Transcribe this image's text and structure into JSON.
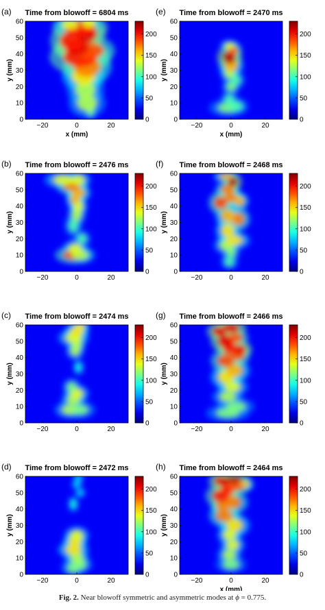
{
  "panels": [
    {
      "label": "(a)",
      "title": "Time from blowoff = 6804 ms",
      "col": 0,
      "row": 0,
      "show_xlabel": true,
      "blobs": [
        [
          8,
          5,
          2,
          3,
          0.5
        ],
        [
          6,
          10,
          6,
          5,
          0.55
        ],
        [
          5,
          18,
          6,
          5,
          0.55
        ],
        [
          4,
          26,
          7,
          5,
          0.65
        ],
        [
          6,
          32,
          8,
          6,
          0.75
        ],
        [
          2,
          38,
          10,
          6,
          0.85
        ],
        [
          8,
          42,
          8,
          5,
          0.8
        ],
        [
          0,
          44,
          7,
          5,
          0.9
        ],
        [
          -3,
          48,
          7,
          6,
          0.85
        ],
        [
          6,
          52,
          6,
          5,
          0.9
        ],
        [
          2,
          56,
          9,
          5,
          0.85
        ],
        [
          -4,
          58,
          5,
          3,
          0.6
        ],
        [
          7,
          59,
          4,
          3,
          0.6
        ]
      ]
    },
    {
      "label": "(e)",
      "title": "Time from blowoff = 2470 ms",
      "col": 1,
      "row": 0,
      "show_xlabel": true,
      "blobs": [
        [
          -2,
          7,
          6,
          3,
          0.5
        ],
        [
          3,
          8,
          4,
          3,
          0.45
        ],
        [
          -1,
          12,
          3,
          3,
          0.45
        ],
        [
          0,
          20,
          3,
          3,
          0.5
        ],
        [
          3,
          24,
          3,
          3,
          0.45
        ],
        [
          -1,
          28,
          3,
          3,
          0.55
        ],
        [
          0,
          33,
          4,
          4,
          0.7
        ],
        [
          -1,
          38,
          4,
          4,
          0.95
        ],
        [
          1,
          42,
          3,
          3,
          0.8
        ],
        [
          -1,
          45,
          3,
          2,
          0.6
        ]
      ]
    },
    {
      "label": "(b)",
      "title": "Time from blowoff = 2476 ms",
      "col": 0,
      "row": 1,
      "show_xlabel": false,
      "blobs": [
        [
          -2,
          10,
          6,
          3,
          0.8
        ],
        [
          2,
          10,
          5,
          3,
          0.55
        ],
        [
          -1,
          14,
          4,
          3,
          0.6
        ],
        [
          3,
          20,
          3,
          3,
          0.45
        ],
        [
          -2,
          28,
          3,
          4,
          0.45
        ],
        [
          0,
          35,
          3,
          4,
          0.55
        ],
        [
          1,
          40,
          3,
          3,
          0.6
        ],
        [
          -1,
          44,
          3,
          3,
          0.7
        ],
        [
          1,
          48,
          4,
          3,
          0.7
        ],
        [
          -3,
          52,
          5,
          3,
          0.75
        ],
        [
          -8,
          56,
          6,
          3,
          0.6
        ],
        [
          1,
          56,
          4,
          3,
          0.6
        ]
      ]
    },
    {
      "label": "(f)",
      "title": "Time from blowoff = 2468 ms",
      "col": 1,
      "row": 1,
      "show_xlabel": false,
      "blobs": [
        [
          -1,
          6,
          3,
          3,
          0.45
        ],
        [
          0,
          12,
          3,
          3,
          0.5
        ],
        [
          -3,
          16,
          4,
          3,
          0.55
        ],
        [
          2,
          19,
          5,
          3,
          0.65
        ],
        [
          -2,
          25,
          4,
          4,
          0.65
        ],
        [
          4,
          32,
          4,
          4,
          0.75
        ],
        [
          -2,
          34,
          4,
          4,
          0.7
        ],
        [
          -6,
          42,
          4,
          4,
          0.8
        ],
        [
          0,
          45,
          4,
          3,
          0.75
        ],
        [
          5,
          43,
          3,
          3,
          0.7
        ],
        [
          -2,
          50,
          4,
          3,
          0.75
        ],
        [
          1,
          55,
          3,
          3,
          0.95
        ],
        [
          -3,
          58,
          4,
          2,
          0.7
        ]
      ]
    },
    {
      "label": "(c)",
      "title": "Time from blowoff = 2474 ms",
      "col": 0,
      "row": 2,
      "show_xlabel": false,
      "blobs": [
        [
          -4,
          8,
          5,
          3,
          0.55
        ],
        [
          2,
          8,
          5,
          3,
          0.5
        ],
        [
          -2,
          14,
          4,
          3,
          0.55
        ],
        [
          0,
          18,
          4,
          3,
          0.6
        ],
        [
          -3,
          22,
          3,
          3,
          0.5
        ],
        [
          1,
          34,
          2,
          3,
          0.4
        ],
        [
          -1,
          44,
          3,
          3,
          0.55
        ],
        [
          0,
          48,
          3,
          3,
          0.55
        ],
        [
          -2,
          52,
          5,
          3,
          0.6
        ],
        [
          0,
          56,
          4,
          3,
          0.65
        ],
        [
          2,
          59,
          3,
          2,
          0.65
        ]
      ]
    },
    {
      "label": "(g)",
      "title": "Time from blowoff = 2466 ms",
      "col": 1,
      "row": 2,
      "show_xlabel": false,
      "blobs": [
        [
          -2,
          6,
          7,
          3,
          0.5
        ],
        [
          3,
          10,
          6,
          3,
          0.5
        ],
        [
          -2,
          16,
          5,
          3,
          0.55
        ],
        [
          1,
          22,
          5,
          3,
          0.6
        ],
        [
          -3,
          28,
          5,
          4,
          0.65
        ],
        [
          2,
          32,
          5,
          4,
          0.7
        ],
        [
          -3,
          38,
          5,
          4,
          0.8
        ],
        [
          4,
          42,
          4,
          4,
          0.8
        ],
        [
          5,
          45,
          4,
          3,
          0.9
        ],
        [
          -1,
          46,
          4,
          4,
          0.85
        ],
        [
          -3,
          50,
          5,
          4,
          0.9
        ],
        [
          3,
          52,
          4,
          3,
          0.8
        ],
        [
          -7,
          56,
          4,
          3,
          0.9
        ],
        [
          0,
          58,
          5,
          3,
          0.9
        ]
      ]
    },
    {
      "label": "(d)",
      "title": "Time from blowoff = 2472 ms",
      "col": 0,
      "row": 3,
      "show_xlabel": false,
      "blobs": [
        [
          -2,
          4,
          4,
          3,
          0.5
        ],
        [
          2,
          6,
          4,
          3,
          0.5
        ],
        [
          0,
          10,
          4,
          3,
          0.55
        ],
        [
          -2,
          15,
          5,
          3,
          0.65
        ],
        [
          -1,
          20,
          4,
          3,
          0.65
        ],
        [
          0,
          24,
          4,
          3,
          0.6
        ],
        [
          -2,
          43,
          2,
          3,
          0.4
        ],
        [
          2,
          50,
          2,
          2,
          0.35
        ],
        [
          0,
          55,
          2,
          2,
          0.35
        ],
        [
          1,
          59,
          2,
          2,
          0.35
        ]
      ]
    },
    {
      "label": "(h)",
      "title": "Time from blowoff = 2464 ms",
      "col": 1,
      "row": 3,
      "show_xlabel": true,
      "blobs": [
        [
          0,
          6,
          5,
          3,
          0.5
        ],
        [
          -1,
          12,
          4,
          3,
          0.55
        ],
        [
          1,
          18,
          4,
          3,
          0.6
        ],
        [
          -1,
          24,
          4,
          3,
          0.6
        ],
        [
          2,
          30,
          5,
          4,
          0.65
        ],
        [
          -4,
          36,
          5,
          4,
          0.75
        ],
        [
          -5,
          42,
          4,
          3,
          0.75
        ],
        [
          1,
          44,
          5,
          4,
          0.75
        ],
        [
          -6,
          48,
          5,
          4,
          0.85
        ],
        [
          -2,
          52,
          4,
          4,
          0.85
        ],
        [
          3,
          54,
          5,
          3,
          0.8
        ],
        [
          -6,
          57,
          4,
          3,
          0.9
        ],
        [
          1,
          58,
          6,
          2,
          0.95
        ],
        [
          8,
          55,
          3,
          2,
          0.7
        ]
      ]
    }
  ],
  "axes": {
    "xlabel": "x (mm)",
    "ylabel": "y (mm)",
    "xlim": [
      -30,
      30
    ],
    "ylim": [
      0,
      60
    ],
    "xticks": [
      "-20",
      "0",
      "20"
    ],
    "yticks": [
      "0",
      "10",
      "20",
      "30",
      "40",
      "50",
      "60"
    ],
    "cbticks": [
      "0",
      "50",
      "100",
      "150",
      "200"
    ]
  },
  "caption": {
    "fig_label": "Fig. 2.",
    "text": "Near blowoff symmetric and asymmetric modes at",
    "symbol": "ϕ",
    "value": " = 0.775."
  },
  "colors": {
    "jet_low": "#00008f",
    "jet_high": "#800000",
    "ink": "#000000"
  }
}
